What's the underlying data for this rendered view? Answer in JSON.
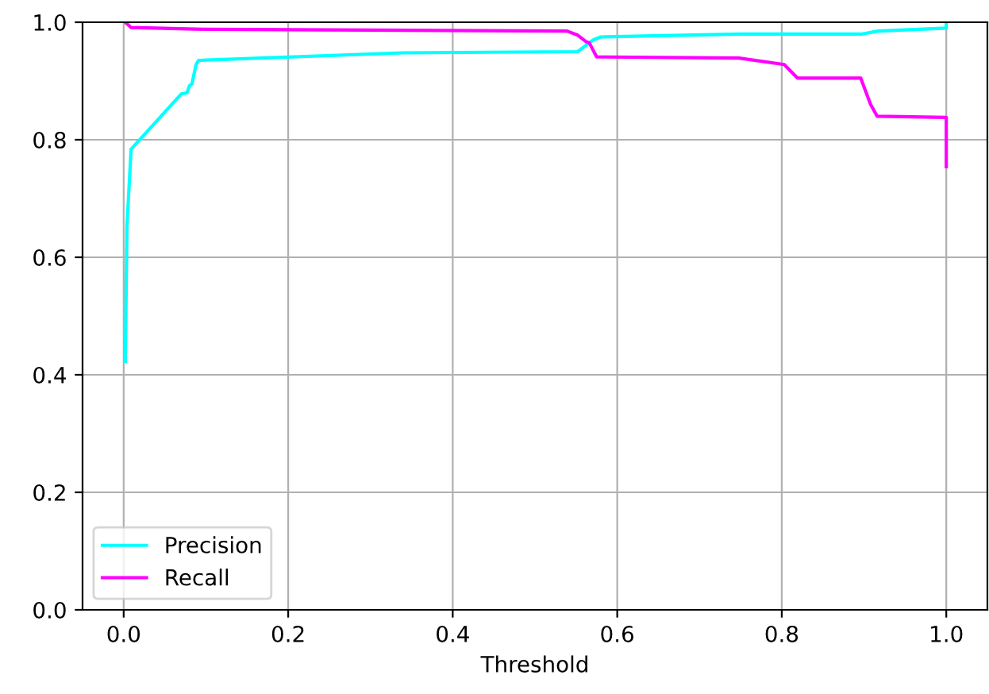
{
  "chart_data": {
    "type": "line",
    "xlabel": "Threshold",
    "series": [
      {
        "name": "Precision",
        "color": "#00ffff",
        "x": [
          0.002,
          0.004,
          0.009,
          0.07,
          0.077,
          0.08,
          0.083,
          0.088,
          0.091,
          0.34,
          0.552,
          0.571,
          0.58,
          0.75,
          0.898,
          0.917,
          1.0,
          1.0
        ],
        "values": [
          0.423,
          0.653,
          0.784,
          0.878,
          0.88,
          0.892,
          0.895,
          0.928,
          0.935,
          0.948,
          0.95,
          0.97,
          0.975,
          0.98,
          0.98,
          0.985,
          0.99,
          0.998
        ]
      },
      {
        "name": "Recall",
        "color": "#ff00ff",
        "x": [
          0.002,
          0.009,
          0.1,
          0.539,
          0.552,
          0.562,
          0.566,
          0.575,
          0.748,
          0.803,
          0.819,
          0.896,
          0.9,
          0.908,
          0.916,
          1.0,
          1.0
        ],
        "values": [
          1.0,
          0.991,
          0.988,
          0.985,
          0.978,
          0.967,
          0.965,
          0.941,
          0.939,
          0.928,
          0.905,
          0.905,
          0.89,
          0.86,
          0.84,
          0.838,
          0.754
        ]
      }
    ],
    "xlim": [
      -0.05,
      1.05
    ],
    "ylim": [
      0,
      1.0
    ],
    "xticks": [
      {
        "value": 0.0,
        "label": "0.0"
      },
      0.2,
      0.4,
      0.6,
      0.8,
      {
        "value": 1.0,
        "label": "1.0"
      }
    ],
    "yticks": [
      {
        "value": 0.0,
        "label": "0.0"
      },
      0.2,
      0.4,
      0.6,
      0.8,
      {
        "value": 1.0,
        "label": "1.0"
      }
    ],
    "grid": true,
    "legend": "lower left"
  }
}
